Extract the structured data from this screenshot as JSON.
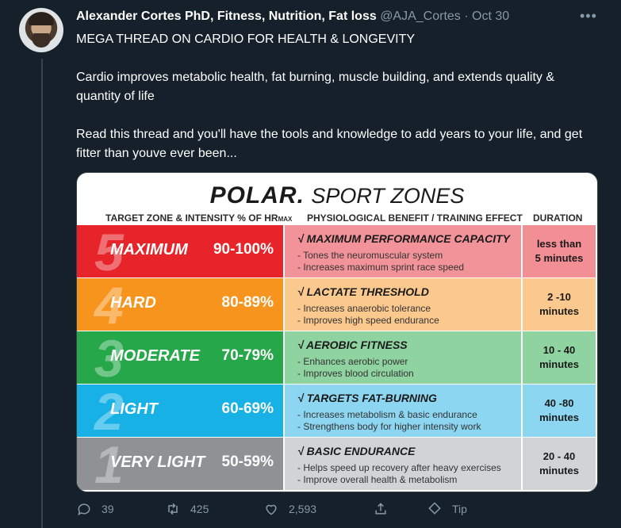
{
  "tweet": {
    "author_name": "Alexander Cortes PhD, Fitness, Nutrition, Fat loss",
    "handle": "@AJA_Cortes",
    "separator": "·",
    "date": "Oct 30",
    "more": "•••",
    "line1": "MEGA THREAD ON CARDIO FOR HEALTH & LONGEVITY",
    "line2": "Cardio improves metabolic health, fat burning, muscle building, and extends quality & quantity of life",
    "line3": "Read this thread and you'll have the tools and knowledge to add years to your life, and get fitter than youve ever been..."
  },
  "image": {
    "brand": "POLAR.",
    "subtitle": "SPORT ZONES",
    "header_zone": "TARGET ZONE & INTENSITY % OF HR",
    "header_zone_sub": "MAX",
    "header_benefit": "PHYSIOLOGICAL BENEFIT / TRAINING EFFECT",
    "header_duration": "DURATION",
    "zones": [
      {
        "num": "5",
        "name": "MAXIMUM",
        "pct": "90-100%",
        "title": "√ MAXIMUM PERFORMANCE CAPACITY",
        "b1": "- Tones the neuromuscular system",
        "b2": "- Increases maximum sprint race speed",
        "dur1": "less than",
        "dur2": "5 minutes",
        "color": "#e7242a",
        "mid_color": "#f2939a",
        "dur_color": "#f28f95"
      },
      {
        "num": "4",
        "name": "HARD",
        "pct": "80-89%",
        "title": "√ LACTATE THRESHOLD",
        "b1": "- Increases anaerobic tolerance",
        "b2": "- Improves high speed endurance",
        "dur1": "2 -10",
        "dur2": "minutes",
        "color": "#f7941d",
        "mid_color": "#fbc88e",
        "dur_color": "#fbc88e"
      },
      {
        "num": "3",
        "name": "MODERATE",
        "pct": "70-79%",
        "title": "√ AEROBIC FITNESS",
        "b1": "- Enhances aerobic power",
        "b2": "- Improves blood circulation",
        "dur1": "10 - 40",
        "dur2": "minutes",
        "color": "#26a84a",
        "mid_color": "#8fd3a0",
        "dur_color": "#8fd3a0"
      },
      {
        "num": "2",
        "name": "LIGHT",
        "pct": "60-69%",
        "title": "√ TARGETS FAT-BURNING",
        "b1": "- Increases metabolism & basic endurance",
        "b2": "- Strengthens body for higher intensity work",
        "dur1": "40 -80",
        "dur2": "minutes",
        "color": "#17b1e6",
        "mid_color": "#8dd6f1",
        "dur_color": "#8dd6f1"
      },
      {
        "num": "1",
        "name": "VERY LIGHT",
        "pct": "50-59%",
        "title": "√ BASIC ENDURANCE",
        "b1": "- Helps speed up recovery after heavy exercises",
        "b2": "- Improve overall health & metabolism",
        "dur1": "20 - 40",
        "dur2": "minutes",
        "color": "#8f9194",
        "mid_color": "#d2d3d5",
        "dur_color": "#d2d3d5"
      }
    ]
  },
  "actions": {
    "replies": "39",
    "retweets": "425",
    "likes": "2,593",
    "tip": "Tip"
  },
  "icons": [
    "reply-icon",
    "retweet-icon",
    "like-icon",
    "share-icon",
    "tip-icon",
    "more-icon"
  ]
}
